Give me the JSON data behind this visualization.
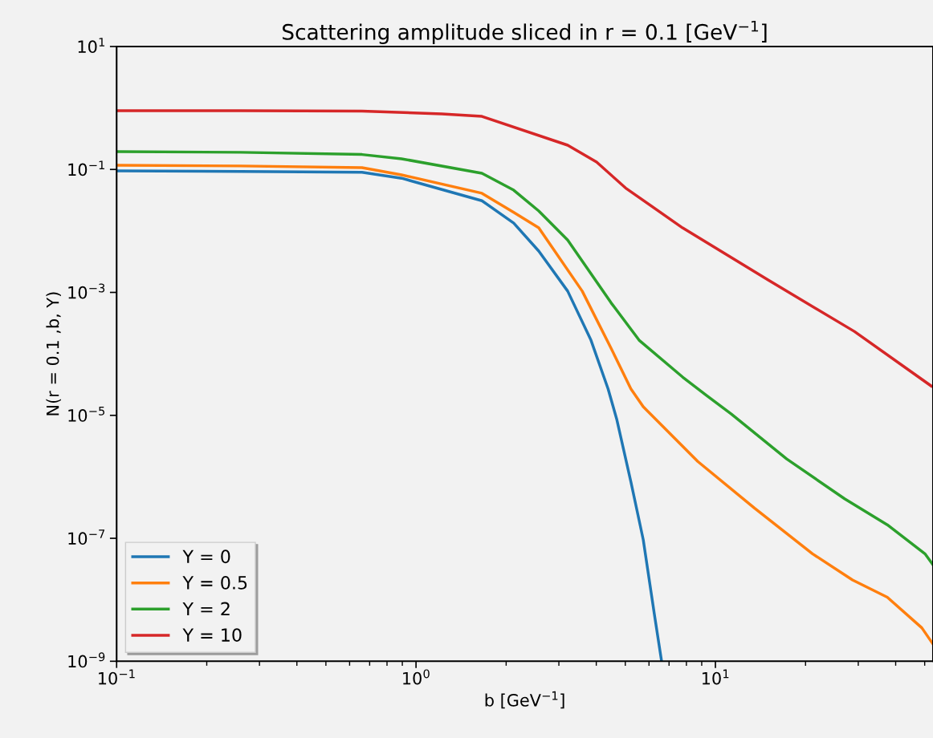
{
  "chart_data": {
    "type": "line",
    "title": "Scattering amplitude sliced in r = 0.1 [GeV$^{−1}$]",
    "xlabel": "b [GeV$^{−1}$]",
    "ylabel": "N(r = 0.1 ,b, Y)",
    "log": "xy",
    "xlim": [
      0.1,
      53.3
    ],
    "ylim": [
      1e-09,
      10
    ],
    "xticks": [
      {
        "value": 0.1,
        "label": "10$^{−1}$"
      },
      {
        "value": 1,
        "label": "10$^{0}$"
      },
      {
        "value": 10,
        "label": "10$^{1}$"
      }
    ],
    "yticks": [
      {
        "value": 1e-09,
        "label": "10$^{−9}$"
      },
      {
        "value": 1e-07,
        "label": "10$^{−7}$"
      },
      {
        "value": 1e-05,
        "label": "10$^{−5}$"
      },
      {
        "value": 0.001,
        "label": "10$^{−3}$"
      },
      {
        "value": 0.1,
        "label": "10$^{−1}$"
      },
      {
        "value": 10,
        "label": "10$^{1}$"
      }
    ],
    "grid": false,
    "legend": "bottom left",
    "marker": "none",
    "line_style": "solid",
    "series": [
      {
        "name": "Y = 0",
        "color": "#1f77b4",
        "x": [
          0.1,
          0.26,
          0.66,
          0.895,
          1.66,
          2.12,
          2.57,
          3.21,
          3.84,
          4.38,
          4.68,
          5.22,
          5.74,
          6.25,
          6.61
        ],
        "values": [
          0.095,
          0.093,
          0.09,
          0.072,
          0.031,
          0.0134,
          0.0047,
          0.00105,
          0.000167,
          2.7e-05,
          8.7e-06,
          8.3e-07,
          9.5e-08,
          5.9e-09,
          1e-09
        ]
      },
      {
        "name": "Y = 0.5",
        "color": "#ff7f0e",
        "x": [
          0.1,
          0.26,
          0.66,
          0.895,
          1.66,
          2.12,
          2.57,
          3.59,
          4.48,
          5.22,
          5.74,
          8.73,
          13.5,
          21.1,
          28.7,
          37.5,
          48.9,
          53.3
        ],
        "values": [
          0.117,
          0.114,
          0.107,
          0.0815,
          0.041,
          0.02,
          0.0112,
          0.00105,
          0.000124,
          2.7e-05,
          1.38e-05,
          1.78e-06,
          3.1e-07,
          5.6e-08,
          2.1e-08,
          1.1e-08,
          3.5e-09,
          1.9e-09
        ]
      },
      {
        "name": "Y = 2",
        "color": "#2ca02c",
        "x": [
          0.1,
          0.26,
          0.66,
          0.895,
          1.66,
          2.12,
          2.57,
          3.21,
          4.48,
          5.56,
          7.77,
          9.35,
          11.3,
          17.3,
          27.0,
          37.5,
          50.1,
          53.3
        ],
        "values": [
          0.195,
          0.19,
          0.175,
          0.149,
          0.0865,
          0.046,
          0.0211,
          0.0071,
          0.00068,
          0.000167,
          4.2e-05,
          2.1e-05,
          1.05e-05,
          1.95e-06,
          4.4e-07,
          1.66e-07,
          5.6e-08,
          3.7e-08
        ]
      },
      {
        "name": "Y = 10",
        "color": "#d62728",
        "x": [
          0.1,
          0.26,
          0.66,
          1.22,
          1.66,
          3.21,
          4.01,
          5.01,
          7.77,
          15.0,
          29.1,
          52.6
        ],
        "values": [
          0.9,
          0.9,
          0.89,
          0.8,
          0.73,
          0.248,
          0.132,
          0.05,
          0.0112,
          0.00159,
          0.000232,
          3e-05
        ]
      }
    ]
  }
}
